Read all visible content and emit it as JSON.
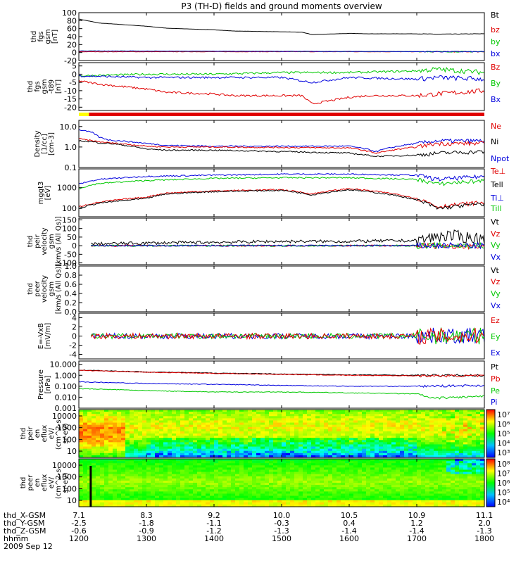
{
  "title": "P3 (TH-D) fields and ground moments overview",
  "colors": {
    "black": "#000000",
    "red": "#e00000",
    "green": "#00c800",
    "blue": "#0000dd",
    "yellow": "#ffff00"
  },
  "chart_data": [
    {
      "type": "line",
      "ylabel": [
        "thd",
        "fgs",
        "gsm",
        "[nT]"
      ],
      "yticks": [
        "100",
        "80",
        "60",
        "40",
        "20",
        "0",
        "-20"
      ],
      "ylim": [
        -20,
        100
      ],
      "legend": [
        {
          "name": "Bt",
          "color": "black"
        },
        {
          "name": "bz",
          "color": "red"
        },
        {
          "name": "by",
          "color": "green"
        },
        {
          "name": "bx",
          "color": "blue"
        }
      ],
      "series": [
        {
          "name": "Bt",
          "color": "black",
          "x": [
            1200,
            1230,
            1300,
            1330,
            1400,
            1430,
            1500,
            1530,
            1545,
            1600,
            1630,
            1700,
            1730,
            1800
          ],
          "y": [
            84,
            74,
            66,
            61,
            57,
            54,
            52,
            51,
            45,
            48,
            47,
            47,
            46,
            47
          ]
        },
        {
          "name": "bz",
          "color": "red",
          "x": [
            1200,
            1800
          ],
          "y": [
            2,
            2
          ]
        },
        {
          "name": "by",
          "color": "green",
          "x": [
            1200,
            1800
          ],
          "y": [
            4,
            2
          ]
        },
        {
          "name": "bx",
          "color": "blue",
          "x": [
            1200,
            1800
          ],
          "y": [
            4,
            2
          ]
        }
      ]
    },
    {
      "type": "line",
      "ylabel": [
        "thd",
        "fgs",
        "gsm",
        "-t89",
        "[nT]"
      ],
      "yticks": [
        "5",
        "0",
        "-5",
        "-10",
        "-15",
        "-20"
      ],
      "ylim": [
        -22,
        7
      ],
      "legend": [
        {
          "name": "Bz",
          "color": "red"
        },
        {
          "name": "By",
          "color": "green"
        },
        {
          "name": "Bx",
          "color": "blue"
        }
      ],
      "series": [
        {
          "name": "Bz",
          "color": "red",
          "x": [
            1200,
            1230,
            1300,
            1330,
            1400,
            1430,
            1500,
            1530,
            1545,
            1600,
            1630,
            1700,
            1730,
            1800
          ],
          "y": [
            -4,
            -6,
            -9,
            -11,
            -12,
            -13,
            -13,
            -13,
            -18,
            -14,
            -13,
            -13,
            -12,
            -10
          ]
        },
        {
          "name": "By",
          "color": "green",
          "x": [
            1200,
            1300,
            1400,
            1500,
            1600,
            1700,
            1730,
            1800
          ],
          "y": [
            -1,
            0,
            0,
            1,
            1,
            2,
            3,
            1
          ]
        },
        {
          "name": "Bx",
          "color": "blue",
          "x": [
            1200,
            1300,
            1400,
            1500,
            1545,
            1600,
            1700,
            1730,
            1800
          ],
          "y": [
            -1,
            -2,
            -2,
            -2,
            -5,
            -2,
            -3,
            -2,
            -3
          ]
        }
      ]
    },
    {
      "type": "line",
      "log": true,
      "ylabel": [
        "Density",
        "[1/cc]",
        "[cm-3]"
      ],
      "yticks": [
        "10.0",
        "1.0",
        "0.1"
      ],
      "ylim": [
        0.1,
        20
      ],
      "legend": [
        {
          "name": "Ne",
          "color": "red"
        },
        {
          "name": "Ni",
          "color": "black"
        },
        {
          "name": "Npot",
          "color": "blue"
        }
      ],
      "series": [
        {
          "name": "Npot",
          "color": "blue",
          "x": [
            1200,
            1220,
            1230,
            1245,
            1300,
            1330,
            1400,
            1500,
            1600,
            1640,
            1700,
            1730,
            1800
          ],
          "y": [
            7,
            5,
            3,
            2.2,
            1.5,
            1.2,
            1.1,
            1.1,
            1.1,
            0.6,
            1.5,
            2,
            2
          ]
        },
        {
          "name": "Ne",
          "color": "red",
          "x": [
            1200,
            1220,
            1230,
            1245,
            1300,
            1330,
            1400,
            1500,
            1600,
            1640,
            1700,
            1730,
            1800
          ],
          "y": [
            2.5,
            2,
            1.8,
            1.6,
            1.1,
            1,
            1,
            0.95,
            0.9,
            0.5,
            1,
            1.5,
            1.5
          ]
        },
        {
          "name": "Ni",
          "color": "black",
          "x": [
            1200,
            1220,
            1230,
            1245,
            1300,
            1330,
            1400,
            1500,
            1600,
            1640,
            1700,
            1730,
            1800
          ],
          "y": [
            2,
            1.8,
            1.6,
            1.5,
            0.8,
            0.7,
            0.7,
            0.6,
            0.5,
            0.35,
            0.4,
            0.5,
            0.6
          ]
        }
      ]
    },
    {
      "type": "line",
      "log": true,
      "ylabel": [
        "mggt3",
        "[eV]"
      ],
      "yticks": [
        "1000",
        "100"
      ],
      "ylim": [
        40,
        8000
      ],
      "legend": [
        {
          "name": "Te⊥",
          "color": "red"
        },
        {
          "name": "Tell",
          "color": "black"
        },
        {
          "name": "Ti⊥",
          "color": "blue"
        },
        {
          "name": "Till",
          "color": "green"
        }
      ],
      "series": [
        {
          "name": "Ti⊥",
          "color": "blue",
          "x": [
            1200,
            1230,
            1300,
            1400,
            1500,
            1600,
            1700,
            1730,
            1800
          ],
          "y": [
            1500,
            2500,
            3500,
            4000,
            4500,
            4500,
            4000,
            2500,
            3500
          ]
        },
        {
          "name": "Till",
          "color": "green",
          "x": [
            1200,
            1230,
            1300,
            1400,
            1500,
            1600,
            1700,
            1730,
            1800
          ],
          "y": [
            900,
            1600,
            2200,
            2800,
            3000,
            3000,
            2500,
            1500,
            2200
          ]
        },
        {
          "name": "Te⊥",
          "color": "red",
          "x": [
            1200,
            1230,
            1300,
            1330,
            1400,
            1500,
            1545,
            1600,
            1700,
            1730,
            1800
          ],
          "y": [
            120,
            200,
            350,
            550,
            700,
            800,
            500,
            900,
            300,
            120,
            200
          ]
        },
        {
          "name": "Tell",
          "color": "black",
          "x": [
            1200,
            1230,
            1300,
            1330,
            1400,
            1500,
            1545,
            1600,
            1700,
            1730,
            1800
          ],
          "y": [
            100,
            180,
            300,
            500,
            650,
            750,
            450,
            800,
            250,
            100,
            170
          ]
        }
      ]
    },
    {
      "type": "line",
      "ylabel": [
        "thd",
        "peir",
        "velocity",
        "gsm",
        "[km/s (All Qs)]"
      ],
      "yticks": [
        "150",
        "100",
        "50",
        "0",
        "-50",
        "-100"
      ],
      "ylim": [
        -110,
        160
      ],
      "legend": [
        {
          "name": "Vt",
          "color": "black"
        },
        {
          "name": "Vz",
          "color": "red"
        },
        {
          "name": "Vy",
          "color": "green"
        },
        {
          "name": "Vx",
          "color": "blue"
        }
      ],
      "series": [
        {
          "name": "Vt",
          "color": "black",
          "x": [
            1218,
            1300,
            1400,
            1500,
            1600,
            1700,
            1740,
            1800
          ],
          "y": [
            10,
            15,
            20,
            25,
            25,
            30,
            60,
            40
          ]
        },
        {
          "name": "Vz",
          "color": "red",
          "x": [
            1218,
            1800
          ],
          "y": [
            0,
            0
          ]
        },
        {
          "name": "Vy",
          "color": "green",
          "x": [
            1218,
            1800
          ],
          "y": [
            0,
            0
          ]
        },
        {
          "name": "Vx",
          "color": "blue",
          "x": [
            1218,
            1800
          ],
          "y": [
            0,
            0
          ]
        }
      ]
    },
    {
      "type": "line",
      "ylabel": [
        "thd",
        "peer",
        "velocity",
        "gsm",
        "[km/s (All Qs)]"
      ],
      "yticks": [
        "1.0",
        "0.8",
        "0.6",
        "0.4",
        "0.2",
        "0.0"
      ],
      "ylim": [
        0,
        1
      ],
      "legend": [
        {
          "name": "Vt",
          "color": "black"
        },
        {
          "name": "Vz",
          "color": "red"
        },
        {
          "name": "Vy",
          "color": "green"
        },
        {
          "name": "Vx",
          "color": "blue"
        }
      ],
      "series": []
    },
    {
      "type": "line",
      "ylabel": [
        "E=-VxB",
        "[mV/m]"
      ],
      "yticks": [
        "4",
        "2",
        "0",
        "-2",
        "-4"
      ],
      "ylim": [
        -5,
        5
      ],
      "legend": [
        {
          "name": "Ez",
          "color": "red"
        },
        {
          "name": "Ey",
          "color": "green"
        },
        {
          "name": "Ex",
          "color": "blue"
        }
      ],
      "series": [
        {
          "name": "Ex",
          "color": "blue",
          "x": [
            1218,
            1800
          ],
          "y": [
            0,
            0
          ]
        },
        {
          "name": "Ey",
          "color": "green",
          "x": [
            1218,
            1800
          ],
          "y": [
            0,
            0
          ]
        },
        {
          "name": "Ez",
          "color": "red",
          "x": [
            1218,
            1800
          ],
          "y": [
            0,
            0
          ]
        }
      ]
    },
    {
      "type": "line",
      "log": true,
      "ylabel": [
        "Pressure",
        "[nPa]"
      ],
      "yticks": [
        "10.000",
        "1.000",
        "0.100",
        "0.010",
        "0.001"
      ],
      "ylim": [
        0.001,
        20
      ],
      "legend": [
        {
          "name": "Pt",
          "color": "black"
        },
        {
          "name": "Pb",
          "color": "red"
        },
        {
          "name": "Pe",
          "color": "green"
        },
        {
          "name": "Pi",
          "color": "blue"
        }
      ],
      "series": [
        {
          "name": "Pt",
          "color": "black",
          "x": [
            1200,
            1300,
            1400,
            1500,
            1600,
            1700,
            1800
          ],
          "y": [
            3,
            2,
            1.6,
            1.3,
            1.1,
            1.0,
            1.0
          ]
        },
        {
          "name": "Pb",
          "color": "red",
          "x": [
            1200,
            1300,
            1400,
            1500,
            1600,
            1700,
            1800
          ],
          "y": [
            2.8,
            1.9,
            1.5,
            1.2,
            1.0,
            0.9,
            0.9
          ]
        },
        {
          "name": "Pi",
          "color": "blue",
          "x": [
            1200,
            1300,
            1400,
            1500,
            1600,
            1700,
            1800
          ],
          "y": [
            0.25,
            0.18,
            0.15,
            0.12,
            0.1,
            0.1,
            0.12
          ]
        },
        {
          "name": "Pe",
          "color": "green",
          "x": [
            1200,
            1300,
            1400,
            1500,
            1600,
            1700,
            1720,
            1800
          ],
          "y": [
            0.06,
            0.04,
            0.03,
            0.03,
            0.025,
            0.02,
            0.008,
            0.012
          ]
        }
      ]
    },
    {
      "type": "heatmap",
      "ylabel": [
        "thd",
        "peir",
        "en",
        "eflux",
        "eV/",
        "(cm^2-s-",
        "sr-eV)"
      ],
      "yticks": [
        "10000",
        "1000",
        "100",
        "10"
      ],
      "colorbar": [
        "10⁷",
        "10⁶",
        "10⁵",
        "10⁴",
        "10³"
      ]
    },
    {
      "type": "heatmap",
      "ylabel": [
        "thd",
        "peer",
        "en",
        "eflux",
        "eV/",
        "(cm^2-s-",
        "sr-eV)"
      ],
      "yticks": [
        "10000",
        "1000",
        "100",
        "10"
      ],
      "colorbar": [
        "10⁸",
        "10⁷",
        "10⁶",
        "10⁵",
        "10⁴"
      ]
    }
  ],
  "xaxis": {
    "rows": [
      {
        "label": "thd_X-GSM",
        "values": [
          "7.1",
          "8.3",
          "9.2",
          "10.0",
          "10.5",
          "10.9",
          "11.1"
        ]
      },
      {
        "label": "thd_Y-GSM",
        "values": [
          "-2.5",
          "-1.8",
          "-1.1",
          "-0.3",
          "0.4",
          "1.2",
          "2.0"
        ]
      },
      {
        "label": "thd_Z-GSM",
        "values": [
          "-0.6",
          "-0.9",
          "-1.2",
          "-1.3",
          "-1.4",
          "-1.4",
          "-1.3"
        ]
      },
      {
        "label": "hhmm",
        "values": [
          "1200",
          "1300",
          "1400",
          "1500",
          "1600",
          "1700",
          "1800"
        ]
      }
    ],
    "date": "2009 Sep 12"
  }
}
